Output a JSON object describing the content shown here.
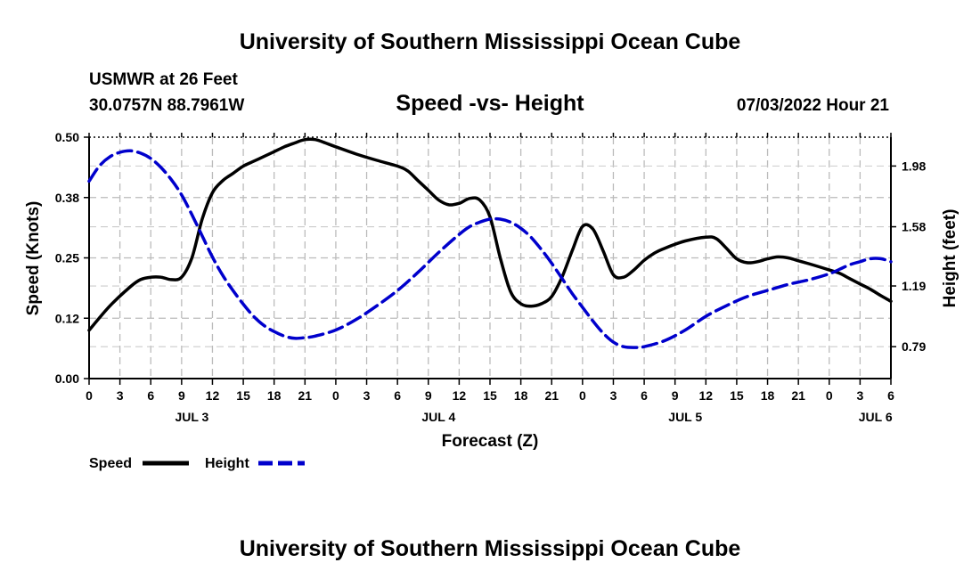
{
  "chart_data": {
    "type": "line",
    "title": "University of Southern Mississippi Ocean Cube",
    "subtitle": "Speed -vs- Height",
    "station": "USMWR at 26 Feet",
    "location": "30.0757N  88.7961W",
    "timestamp": "07/03/2022 Hour 21",
    "footer_title": "University of Southern Mississippi Ocean Cube",
    "xlabel": "Forecast (Z)",
    "ylabel_left": "Speed (Knots)",
    "ylabel_right": "Height (feet)",
    "x_hours_range": [
      0,
      78
    ],
    "ylim_left": [
      0,
      0.5
    ],
    "ylim_right": [
      0.58,
      2.17
    ],
    "x_tick_hours": [
      0,
      3,
      6,
      9,
      12,
      15,
      18,
      21,
      24,
      27,
      30,
      33,
      36,
      39,
      42,
      45,
      48,
      51,
      54,
      57,
      60,
      63,
      66,
      69,
      72,
      75,
      78
    ],
    "x_tick_labels": [
      "0",
      "3",
      "6",
      "9",
      "12",
      "15",
      "18",
      "21",
      "0",
      "3",
      "6",
      "9",
      "12",
      "15",
      "18",
      "21",
      "0",
      "3",
      "6",
      "9",
      "12",
      "15",
      "18",
      "21",
      "0",
      "3",
      "6"
    ],
    "day_labels": [
      {
        "label": "JUL 3",
        "hour": 10
      },
      {
        "label": "JUL 4",
        "hour": 34
      },
      {
        "label": "JUL 5",
        "hour": 58
      },
      {
        "label": "JUL 6",
        "hour": 76.5
      }
    ],
    "y_left_ticks": [
      0.0,
      0.125,
      0.25,
      0.375,
      0.5
    ],
    "y_left_labels": [
      "0.00",
      "0.12",
      "0.25",
      "0.38",
      "0.50"
    ],
    "y_right_ticks": [
      0.79,
      1.19,
      1.58,
      1.98
    ],
    "y_right_labels": [
      "0.79",
      "1.19",
      "1.58",
      "1.98"
    ],
    "series": [
      {
        "name": "Speed",
        "axis": "left",
        "color": "#000000",
        "style": "solid",
        "x": [
          0,
          2,
          4,
          5,
          6,
          7,
          8,
          9,
          10,
          11,
          12,
          13,
          14,
          15,
          16,
          17,
          18,
          19,
          20,
          21,
          22,
          23,
          24,
          26,
          28,
          30,
          31,
          32,
          33,
          34,
          35,
          36,
          37,
          38,
          39,
          40,
          41,
          42,
          43,
          44,
          45,
          46,
          47,
          48,
          49,
          50,
          51,
          52,
          53,
          54,
          55,
          56,
          58,
          60,
          61,
          62,
          63,
          64,
          65,
          66,
          67,
          68,
          69,
          70,
          72,
          73,
          74,
          75,
          76,
          77,
          78
        ],
        "values": [
          0.1,
          0.15,
          0.19,
          0.205,
          0.21,
          0.21,
          0.205,
          0.21,
          0.25,
          0.33,
          0.385,
          0.41,
          0.425,
          0.44,
          0.45,
          0.46,
          0.47,
          0.48,
          0.488,
          0.495,
          0.495,
          0.488,
          0.48,
          0.465,
          0.452,
          0.44,
          0.43,
          0.41,
          0.39,
          0.37,
          0.36,
          0.363,
          0.373,
          0.37,
          0.335,
          0.25,
          0.18,
          0.155,
          0.15,
          0.155,
          0.17,
          0.21,
          0.265,
          0.315,
          0.31,
          0.265,
          0.215,
          0.21,
          0.225,
          0.245,
          0.26,
          0.27,
          0.285,
          0.293,
          0.29,
          0.27,
          0.248,
          0.24,
          0.242,
          0.248,
          0.252,
          0.25,
          0.244,
          0.238,
          0.225,
          0.218,
          0.207,
          0.196,
          0.185,
          0.172,
          0.16
        ]
      },
      {
        "name": "Height",
        "axis": "right",
        "color": "#0000cc",
        "style": "dashed",
        "x": [
          0,
          1,
          2,
          3,
          4,
          5,
          6,
          7,
          8,
          9,
          10,
          11,
          12,
          13,
          14,
          15,
          16,
          17,
          18,
          19,
          20,
          21,
          22,
          24,
          26,
          28,
          30,
          32,
          34,
          36,
          37,
          38,
          39,
          40,
          41,
          42,
          43,
          44,
          45,
          46,
          47,
          48,
          49,
          50,
          51,
          52,
          53,
          54,
          56,
          58,
          60,
          62,
          64,
          66,
          68,
          70,
          72,
          73,
          74,
          75,
          76,
          77,
          78
        ],
        "values": [
          1.88,
          1.98,
          2.04,
          2.07,
          2.08,
          2.065,
          2.03,
          1.97,
          1.89,
          1.79,
          1.66,
          1.52,
          1.38,
          1.26,
          1.16,
          1.07,
          0.99,
          0.93,
          0.89,
          0.86,
          0.845,
          0.85,
          0.86,
          0.9,
          0.97,
          1.06,
          1.16,
          1.28,
          1.41,
          1.53,
          1.58,
          1.61,
          1.63,
          1.63,
          1.61,
          1.57,
          1.51,
          1.43,
          1.34,
          1.24,
          1.14,
          1.05,
          0.96,
          0.88,
          0.82,
          0.79,
          0.785,
          0.79,
          0.83,
          0.9,
          0.99,
          1.06,
          1.12,
          1.16,
          1.2,
          1.23,
          1.27,
          1.3,
          1.33,
          1.35,
          1.37,
          1.37,
          1.35
        ]
      }
    ],
    "legend": [
      "Speed",
      "Height"
    ],
    "grid": true
  }
}
